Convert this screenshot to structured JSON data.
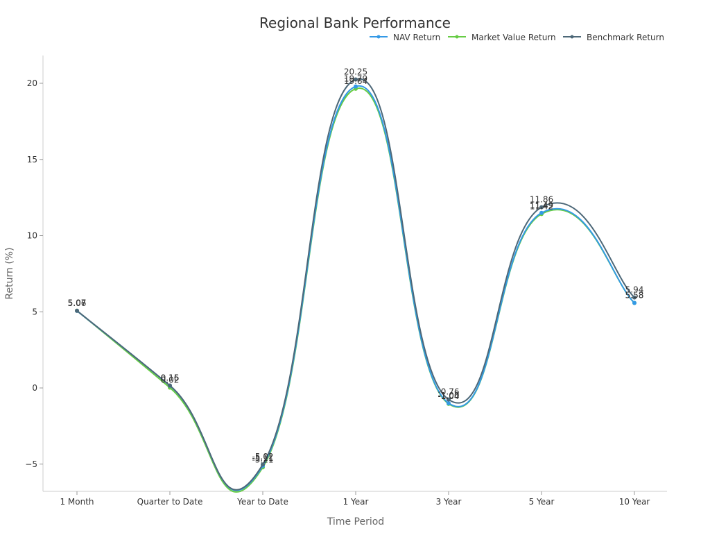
{
  "chart_data": {
    "type": "line",
    "title": "Regional Bank Performance",
    "xlabel": "Time Period",
    "ylabel": "Return (%)",
    "categories": [
      "1 Month",
      "Quarter to Date",
      "Year to Date",
      "1 Year",
      "3 Year",
      "5 Year",
      "10 Year"
    ],
    "ylim": [
      -6.5,
      21.8
    ],
    "yticks": [
      -5,
      0,
      5,
      10,
      15,
      20
    ],
    "grid": false,
    "legend_position": "top-right",
    "series": [
      {
        "name": "NAV Return",
        "color": "#3399e6",
        "values": [
          5.06,
          0.15,
          -5.11,
          19.79,
          -1.0,
          11.49,
          5.58
        ],
        "labels": [
          "5.06",
          "0.15",
          "-5.11",
          "19.79",
          "-1.00",
          "11.49",
          "5.58"
        ]
      },
      {
        "name": "Market Value Return",
        "color": "#66cc44",
        "values": [
          5.07,
          0.02,
          -5.21,
          19.64,
          -1.04,
          11.42,
          5.58
        ],
        "labels": [
          "5.07",
          "0.02",
          "-5.21",
          "19.64",
          "-1.04",
          "11.42",
          "5.58"
        ]
      },
      {
        "name": "Benchmark Return",
        "color": "#4d6878",
        "values": [
          5.07,
          0.16,
          -5.02,
          20.25,
          -0.76,
          11.86,
          5.94
        ],
        "labels": [
          "5.07",
          "0.16",
          "-5.02",
          "20.25",
          "-0.76",
          "11.86",
          "5.94"
        ]
      }
    ]
  }
}
